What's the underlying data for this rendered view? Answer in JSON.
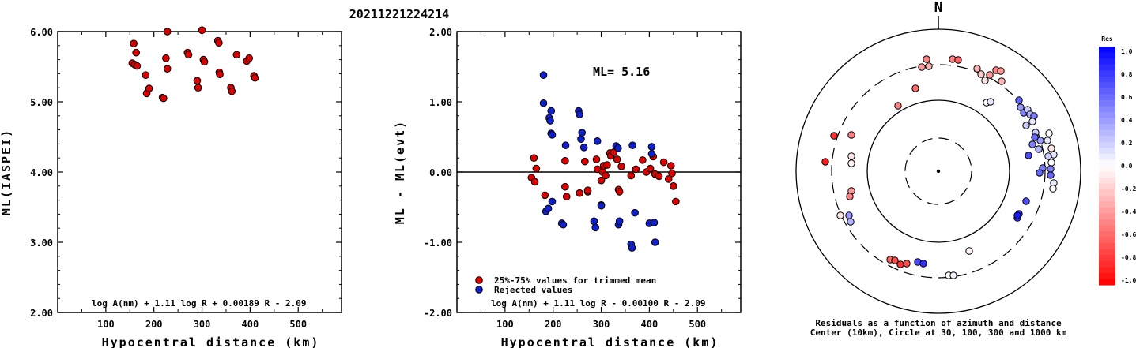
{
  "title": "20211221224214",
  "chart_data": [
    {
      "type": "scatter",
      "xlabel": "Hypocentral distance (km)",
      "ylabel": "ML(IASPEI)",
      "xlim": [
        0,
        590
      ],
      "ylim": [
        2.0,
        6.0
      ],
      "xticks": [
        "100",
        "200",
        "300",
        "400",
        "500"
      ],
      "yticks": [
        "2.00",
        "3.00",
        "4.00",
        "5.00",
        "6.00"
      ],
      "formula": "log A(nm) + 1.11 log R + 0.00189 R - 2.09",
      "series": [
        {
          "color": "#dd0000",
          "points": [
            [
              158,
              5.83
            ],
            [
              163,
              5.7
            ],
            [
              155,
              5.55
            ],
            [
              160,
              5.53
            ],
            [
              165,
              5.51
            ],
            [
              183,
              5.38
            ],
            [
              185,
              5.12
            ],
            [
              190,
              5.19
            ],
            [
              218,
              5.06
            ],
            [
              220,
              5.05
            ],
            [
              228,
              6.0
            ],
            [
              225,
              5.62
            ],
            [
              228,
              5.47
            ],
            [
              270,
              5.7
            ],
            [
              272,
              5.67
            ],
            [
              290,
              5.3
            ],
            [
              292,
              5.2
            ],
            [
              300,
              6.02
            ],
            [
              303,
              5.6
            ],
            [
              305,
              5.57
            ],
            [
              333,
              5.87
            ],
            [
              335,
              5.84
            ],
            [
              336,
              5.42
            ],
            [
              337,
              5.39
            ],
            [
              360,
              5.2
            ],
            [
              362,
              5.15
            ],
            [
              372,
              5.67
            ],
            [
              393,
              5.58
            ],
            [
              398,
              5.62
            ],
            [
              408,
              5.37
            ],
            [
              410,
              5.34
            ]
          ]
        }
      ]
    },
    {
      "type": "scatter",
      "xlabel": "Hypocentral distance (km)",
      "ylabel": "ML - ML(evt)",
      "xlim": [
        0,
        590
      ],
      "ylim": [
        -2.0,
        2.0
      ],
      "xticks": [
        "100",
        "200",
        "300",
        "400",
        "500"
      ],
      "yticks": [
        "-2.00",
        "-1.00",
        "0.00",
        "1.00",
        "2.00"
      ],
      "annotation": "ML= 5.16",
      "formula": "log A(nm) + 1.11 log R - 0.00100 R - 2.09",
      "legend": [
        "25%-75% values for trimmed mean",
        "Rejected values"
      ],
      "series": [
        {
          "name": "25%-75% values for trimmed mean",
          "color": "#dd0000",
          "points": [
            [
              155,
              -0.08
            ],
            [
              160,
              0.2
            ],
            [
              165,
              0.05
            ],
            [
              162,
              -0.14
            ],
            [
              183,
              -0.33
            ],
            [
              225,
              -0.21
            ],
            [
              228,
              -0.35
            ],
            [
              225,
              0.16
            ],
            [
              255,
              -0.3
            ],
            [
              272,
              -0.28
            ],
            [
              272,
              -0.26
            ],
            [
              266,
              0.15
            ],
            [
              290,
              0.18
            ],
            [
              292,
              0.04
            ],
            [
              300,
              -0.12
            ],
            [
              303,
              0.0
            ],
            [
              305,
              0.09
            ],
            [
              309,
              -0.05
            ],
            [
              312,
              0.1
            ],
            [
              318,
              0.27
            ],
            [
              320,
              0.23
            ],
            [
              326,
              0.28
            ],
            [
              333,
              0.18
            ],
            [
              336,
              -0.25
            ],
            [
              338,
              -0.28
            ],
            [
              342,
              0.08
            ],
            [
              362,
              -0.05
            ],
            [
              372,
              0.04
            ],
            [
              386,
              0.17
            ],
            [
              394,
              0.0
            ],
            [
              402,
              0.05
            ],
            [
              408,
              0.22
            ],
            [
              412,
              -0.03
            ],
            [
              420,
              -0.06
            ],
            [
              430,
              0.14
            ],
            [
              440,
              -0.1
            ],
            [
              445,
              0.09
            ],
            [
              447,
              -0.02
            ],
            [
              450,
              -0.2
            ],
            [
              455,
              -0.42
            ]
          ]
        },
        {
          "name": "Rejected values",
          "color": "#1020cc",
          "points": [
            [
              180,
              1.38
            ],
            [
              180,
              0.98
            ],
            [
              185,
              -0.56
            ],
            [
              190,
              -0.52
            ],
            [
              192,
              0.77
            ],
            [
              194,
              0.73
            ],
            [
              196,
              0.87
            ],
            [
              196,
              0.55
            ],
            [
              198,
              0.53
            ],
            [
              198,
              -0.42
            ],
            [
              218,
              -0.73
            ],
            [
              221,
              -0.75
            ],
            [
              226,
              0.38
            ],
            [
              253,
              0.87
            ],
            [
              255,
              0.82
            ],
            [
              258,
              0.47
            ],
            [
              260,
              0.56
            ],
            [
              264,
              0.35
            ],
            [
              285,
              -0.7
            ],
            [
              288,
              -0.79
            ],
            [
              292,
              0.44
            ],
            [
              300,
              -0.47
            ],
            [
              300,
              -0.48
            ],
            [
              331,
              0.37
            ],
            [
              335,
              0.34
            ],
            [
              336,
              -0.75
            ],
            [
              338,
              -0.7
            ],
            [
              362,
              -1.03
            ],
            [
              364,
              -1.08
            ],
            [
              365,
              0.38
            ],
            [
              370,
              -0.58
            ],
            [
              400,
              -0.73
            ],
            [
              405,
              0.36
            ],
            [
              405,
              0.26
            ],
            [
              410,
              -0.72
            ],
            [
              412,
              -1.0
            ]
          ]
        }
      ]
    },
    {
      "type": "scatter",
      "subtype": "polar",
      "north_label": "N",
      "caption_line1": "Residuals as a function of azimuth and distance",
      "caption_line2": "Center (10km), Circle at 30, 100, 300 and 1000 km",
      "colorbar_title": "Res",
      "colorbar_labels": [
        "1.0",
        "0.8",
        "0.6",
        "0.4",
        "0.2",
        "0.0",
        "-0.2",
        "-0.4",
        "-0.6",
        "-0.8",
        "-1.0"
      ],
      "rings_km": [
        30,
        100,
        300,
        1000
      ],
      "points_residual": [
        [
          -0.3,
          -0.2
        ],
        [
          -0.2,
          -0.15
        ],
        [
          -0.5,
          -0.3
        ],
        [
          -0.6,
          -0.35
        ],
        [
          -0.3,
          -0.3
        ],
        [
          -0.8,
          -0.4
        ],
        [
          -0.9,
          -0.43
        ],
        [
          -0.6,
          -0.47
        ],
        [
          -0.7,
          -0.5
        ],
        [
          -0.3,
          -0.55
        ],
        [
          -0.3,
          -0.6
        ],
        [
          -0.1,
          -0.6
        ],
        [
          0.5,
          -0.67
        ],
        [
          0.8,
          -0.7
        ],
        [
          0.7,
          -0.75
        ],
        [
          0.6,
          -0.77
        ],
        [
          0.9,
          -0.8
        ],
        [
          0.5,
          -0.85
        ],
        [
          0.4,
          -0.92
        ],
        [
          0.4,
          -0.95
        ],
        [
          0.8,
          -1.02
        ],
        [
          0.7,
          -1.1
        ],
        [
          0.3,
          -1.13
        ],
        [
          0.6,
          -1.2
        ],
        [
          0.2,
          -1.25
        ],
        [
          0.1,
          -1.35
        ],
        [
          0.0,
          -1.46
        ],
        [
          0.4,
          -1.5
        ],
        [
          0.5,
          -1.55
        ],
        [
          0.2,
          -1.6
        ],
        [
          0.1,
          -1.7
        ],
        [
          0.0,
          -1.78
        ],
        [
          0.6,
          -1.84
        ],
        [
          0.7,
          -1.9
        ],
        [
          0.5,
          -1.95
        ],
        [
          0.4,
          -2.0
        ],
        [
          0.8,
          -2.05
        ],
        [
          0.9,
          -2.1
        ],
        [
          0.6,
          -2.2
        ],
        [
          -0.5,
          -2.34
        ],
        [
          -0.7,
          -2.38
        ],
        [
          -0.8,
          -2.42
        ],
        [
          -0.3,
          -2.46
        ],
        [
          0.1,
          -2.9
        ],
        [
          -0.3,
          -3.1
        ],
        [
          0.0,
          -3.18
        ],
        [
          -0.9,
          -3.6
        ],
        [
          -0.8,
          -3.8
        ],
        [
          -0.6,
          -4.0
        ],
        [
          -0.5,
          -4.1
        ],
        [
          -0.3,
          -4.2
        ],
        [
          -0.2,
          -4.3
        ],
        [
          -0.1,
          -4.5
        ],
        [
          -0.4,
          -4.6
        ],
        [
          -0.5,
          -4.8
        ],
        [
          -0.3,
          -5.0
        ],
        [
          -0.7,
          -5.2
        ],
        [
          -0.8,
          -5.28
        ]
      ]
    }
  ]
}
